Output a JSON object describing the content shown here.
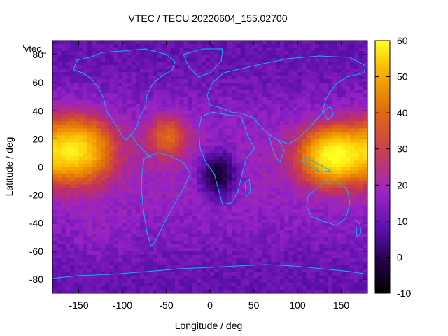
{
  "chart_data": {
    "type": "heatmap",
    "title": "VTEC / TECU 20220604_155.02700",
    "xlabel": "Longitude / deg",
    "ylabel": "Latitude / deg",
    "legend_label": "'vtec_",
    "xlim": [
      -180,
      180
    ],
    "ylim": [
      -90,
      90
    ],
    "xticks": [
      -150,
      -100,
      -50,
      0,
      50,
      100,
      150
    ],
    "yticks": [
      -80,
      -60,
      -40,
      -20,
      0,
      20,
      40,
      60,
      80
    ],
    "colorbar": {
      "range": [
        -10,
        60
      ],
      "ticks": [
        60,
        50,
        40,
        30,
        20,
        10,
        0,
        -10
      ]
    },
    "grid_resolution_deg": {
      "lon": 5,
      "lat": 2.5
    },
    "features": [
      {
        "name": "equatorial anomaly Pacific east",
        "lon": 140,
        "lat": 8,
        "vtec": 56,
        "spread_lon": 24,
        "spread_lat": 13
      },
      {
        "name": "equatorial anomaly Pacific west",
        "lon": -155,
        "lat": 12,
        "vtec": 52,
        "spread_lon": 28,
        "spread_lat": 15
      },
      {
        "name": "secondary crest Central America",
        "lon": -48,
        "lat": 22,
        "vtec": 28,
        "spread_lon": 15,
        "spread_lat": 10
      },
      {
        "name": "south Pacific patch",
        "lon": -130,
        "lat": -50,
        "vtec": 12,
        "spread_lon": 20,
        "spread_lat": 12
      },
      {
        "name": "low over Africa",
        "lon": 10,
        "lat": -5,
        "vtec": -8,
        "spread_lon": 14,
        "spread_lat": 11
      }
    ],
    "background_vtec": 10,
    "overlay": "coastlines (cyan)"
  },
  "colors": {
    "coastline": "#00b8ff",
    "frame": "#000000"
  }
}
